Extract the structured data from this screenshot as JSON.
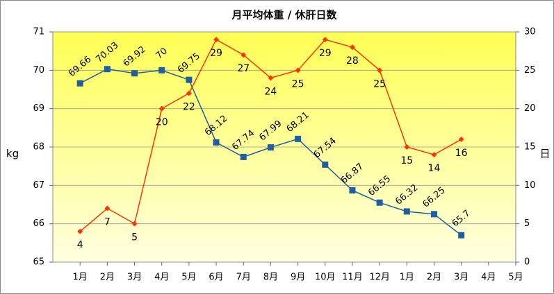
{
  "chart_data": {
    "type": "line",
    "title": "月平均体重 / 休肝日数",
    "categories": [
      "1月",
      "2月",
      "3月",
      "4月",
      "5月",
      "6月",
      "7月",
      "8月",
      "9月",
      "10月",
      "11月",
      "12月",
      "1月",
      "2月",
      "3月",
      "4月",
      "5月"
    ],
    "ylabel": "kg",
    "y2label": "日",
    "ylim": [
      65,
      71
    ],
    "yticks": [
      65,
      66,
      67,
      68,
      69,
      70,
      71
    ],
    "y2lim": [
      0,
      30
    ],
    "y2ticks": [
      0,
      5,
      10,
      15,
      20,
      25,
      30
    ],
    "grid": true,
    "series": [
      {
        "name": "体重",
        "color": "#1f5f9f",
        "marker": "square",
        "label_color": "#6633cc",
        "values": [
          69.66,
          70.03,
          69.92,
          70,
          69.75,
          68.12,
          67.74,
          67.99,
          68.21,
          67.54,
          66.87,
          66.55,
          66.32,
          66.25,
          65.7,
          null,
          null
        ]
      },
      {
        "name": "休肝日数",
        "color": "#ff3300",
        "marker": "diamond",
        "axis": "y2",
        "label_color": "#ff2200",
        "values": [
          4,
          7,
          5,
          20,
          22,
          29,
          27,
          24,
          25,
          29,
          28,
          25,
          15,
          14,
          16,
          null,
          null
        ]
      }
    ]
  }
}
